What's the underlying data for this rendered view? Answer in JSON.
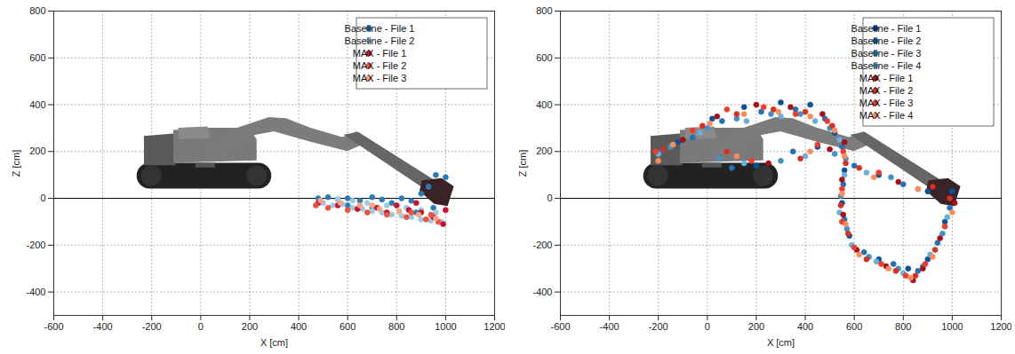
{
  "chart_data": [
    {
      "type": "scatter",
      "xlabel": "X [cm]",
      "ylabel": "Z [cm]",
      "xlim": [
        -600,
        1200
      ],
      "ylim": [
        -500,
        800
      ],
      "xticks": [
        -600,
        -400,
        -200,
        0,
        200,
        400,
        600,
        800,
        1000,
        1200
      ],
      "yticks": [
        -400,
        -200,
        0,
        200,
        400,
        600,
        800
      ],
      "grid": true,
      "legend": "top-right",
      "marker": "circle",
      "hlines": [
        0
      ],
      "series": [
        {
          "name": "Baseline - File 1",
          "color": "#2b7bba",
          "values": [
            [
              480,
              0
            ],
            [
              520,
              5
            ],
            [
              560,
              -5
            ],
            [
              600,
              0
            ],
            [
              650,
              -10
            ],
            [
              700,
              5
            ],
            [
              740,
              -5
            ],
            [
              780,
              -20
            ],
            [
              820,
              0
            ],
            [
              860,
              -10
            ],
            [
              900,
              20
            ],
            [
              930,
              50
            ],
            [
              960,
              100
            ],
            [
              1000,
              90
            ],
            [
              950,
              -40
            ],
            [
              880,
              -60
            ],
            [
              700,
              -40
            ],
            [
              600,
              -30
            ]
          ]
        },
        {
          "name": "Baseline - File 2",
          "color": "#9ecae1",
          "values": [
            [
              500,
              -20
            ],
            [
              540,
              -30
            ],
            [
              580,
              -25
            ],
            [
              620,
              -40
            ],
            [
              660,
              -45
            ],
            [
              700,
              -55
            ],
            [
              740,
              -60
            ],
            [
              780,
              -70
            ],
            [
              820,
              -75
            ],
            [
              860,
              -80
            ],
            [
              900,
              -90
            ],
            [
              940,
              -95
            ],
            [
              980,
              -100
            ],
            [
              960,
              -60
            ],
            [
              900,
              -50
            ],
            [
              840,
              -40
            ],
            [
              760,
              -30
            ],
            [
              680,
              -20
            ],
            [
              620,
              -10
            ],
            [
              560,
              -5
            ]
          ]
        },
        {
          "name": "MAX - File 1",
          "color": "#c8102e",
          "values": [
            [
              480,
              -20
            ],
            [
              560,
              -30
            ],
            [
              640,
              -45
            ],
            [
              720,
              -40
            ],
            [
              800,
              -30
            ],
            [
              850,
              -50
            ],
            [
              900,
              -60
            ],
            [
              950,
              -80
            ],
            [
              990,
              -110
            ],
            [
              1000,
              -50
            ],
            [
              880,
              -20
            ],
            [
              760,
              -60
            ]
          ]
        },
        {
          "name": "MAX - File 2",
          "color": "#e8543f",
          "values": [
            [
              470,
              -30
            ],
            [
              520,
              -40
            ],
            [
              600,
              -50
            ],
            [
              680,
              -60
            ],
            [
              760,
              -70
            ],
            [
              840,
              -80
            ],
            [
              920,
              -90
            ],
            [
              970,
              -100
            ],
            [
              940,
              -70
            ],
            [
              860,
              -60
            ]
          ]
        },
        {
          "name": "MAX - File 3",
          "color": "#f4a582",
          "values": [
            [
              490,
              -10
            ],
            [
              570,
              -20
            ],
            [
              650,
              -30
            ],
            [
              730,
              -45
            ],
            [
              810,
              -55
            ],
            [
              890,
              -70
            ],
            [
              960,
              -85
            ],
            [
              700,
              -30
            ]
          ]
        }
      ]
    },
    {
      "type": "scatter",
      "xlabel": "X [cm]",
      "ylabel": "Z [cm]",
      "xlim": [
        -600,
        1200
      ],
      "ylim": [
        -500,
        800
      ],
      "xticks": [
        -600,
        -400,
        -200,
        0,
        200,
        400,
        600,
        800,
        1000,
        1200
      ],
      "yticks": [
        -400,
        -200,
        0,
        200,
        400,
        600,
        800
      ],
      "grid": true,
      "legend": "top-right",
      "marker": "circle",
      "hlines": [
        0
      ],
      "series": [
        {
          "name": "Baseline - File 1",
          "color": "#08519c",
          "values": [
            [
              1000,
              30
            ],
            [
              970,
              -100
            ],
            [
              900,
              -260
            ],
            [
              820,
              -300
            ],
            [
              700,
              -260
            ],
            [
              580,
              -160
            ],
            [
              550,
              -20
            ],
            [
              560,
              120
            ],
            [
              520,
              280
            ],
            [
              420,
              400
            ],
            [
              300,
              410
            ],
            [
              150,
              390
            ],
            [
              20,
              340
            ],
            [
              -120,
              240
            ],
            [
              200,
              140
            ],
            [
              450,
              220
            ],
            [
              700,
              100
            ],
            [
              900,
              30
            ]
          ]
        },
        {
          "name": "Baseline - File 2",
          "color": "#2171b5",
          "values": [
            [
              990,
              -40
            ],
            [
              940,
              -190
            ],
            [
              860,
              -310
            ],
            [
              760,
              -280
            ],
            [
              640,
              -230
            ],
            [
              560,
              -90
            ],
            [
              555,
              60
            ],
            [
              550,
              220
            ],
            [
              480,
              340
            ],
            [
              360,
              380
            ],
            [
              220,
              370
            ],
            [
              60,
              330
            ],
            [
              -60,
              260
            ],
            [
              -190,
              200
            ],
            [
              100,
              130
            ],
            [
              350,
              200
            ],
            [
              600,
              140
            ],
            [
              800,
              60
            ]
          ]
        },
        {
          "name": "Baseline - File 3",
          "color": "#4292c6",
          "values": [
            [
              960,
              -150
            ],
            [
              880,
              -290
            ],
            [
              780,
              -300
            ],
            [
              660,
              -250
            ],
            [
              570,
              -130
            ],
            [
              545,
              10
            ],
            [
              565,
              170
            ],
            [
              500,
              300
            ],
            [
              380,
              360
            ],
            [
              260,
              360
            ],
            [
              120,
              340
            ],
            [
              0,
              300
            ],
            [
              -150,
              220
            ],
            [
              50,
              170
            ],
            [
              300,
              160
            ],
            [
              520,
              190
            ],
            [
              750,
              90
            ]
          ]
        },
        {
          "name": "Baseline - File 4",
          "color": "#6baed6",
          "values": [
            [
              980,
              -80
            ],
            [
              910,
              -240
            ],
            [
              800,
              -320
            ],
            [
              690,
              -270
            ],
            [
              590,
              -200
            ],
            [
              540,
              -60
            ],
            [
              560,
              100
            ],
            [
              540,
              250
            ],
            [
              440,
              330
            ],
            [
              300,
              350
            ],
            [
              160,
              330
            ],
            [
              -30,
              280
            ],
            [
              -200,
              190
            ],
            [
              150,
              150
            ],
            [
              400,
              180
            ],
            [
              650,
              110
            ],
            [
              860,
              40
            ]
          ]
        },
        {
          "name": "MAX - File 1",
          "color": "#a50f15",
          "values": [
            [
              1010,
              -20
            ],
            [
              950,
              -170
            ],
            [
              880,
              -300
            ],
            [
              840,
              -350
            ],
            [
              730,
              -290
            ],
            [
              610,
              -220
            ],
            [
              555,
              -70
            ],
            [
              550,
              80
            ],
            [
              560,
              240
            ],
            [
              470,
              360
            ],
            [
              340,
              390
            ],
            [
              200,
              400
            ],
            [
              40,
              350
            ],
            [
              -100,
              250
            ],
            [
              250,
              150
            ],
            [
              500,
              210
            ],
            [
              780,
              70
            ]
          ]
        },
        {
          "name": "MAX - File 2",
          "color": "#d7301f",
          "values": [
            [
              990,
              0
            ],
            [
              930,
              -220
            ],
            [
              850,
              -330
            ],
            [
              770,
              -310
            ],
            [
              650,
              -260
            ],
            [
              575,
              -150
            ],
            [
              545,
              -30
            ],
            [
              565,
              150
            ],
            [
              510,
              310
            ],
            [
              400,
              370
            ],
            [
              270,
              380
            ],
            [
              120,
              360
            ],
            [
              -20,
              310
            ],
            [
              -180,
              210
            ],
            [
              80,
              200
            ],
            [
              380,
              170
            ],
            [
              620,
              130
            ],
            [
              920,
              50
            ]
          ]
        },
        {
          "name": "MAX - File 3",
          "color": "#ef3b2c",
          "values": [
            [
              970,
              -120
            ],
            [
              890,
              -280
            ],
            [
              810,
              -330
            ],
            [
              710,
              -280
            ],
            [
              600,
              -210
            ],
            [
              550,
              -100
            ],
            [
              550,
              40
            ],
            [
              555,
              200
            ],
            [
              490,
              330
            ],
            [
              360,
              360
            ],
            [
              230,
              390
            ],
            [
              80,
              380
            ],
            [
              -60,
              290
            ],
            [
              -210,
              200
            ],
            [
              180,
              160
            ],
            [
              450,
              230
            ],
            [
              700,
              110
            ]
          ]
        },
        {
          "name": "MAX - File 4",
          "color": "#fc8d59",
          "values": [
            [
              1000,
              -60
            ],
            [
              920,
              -250
            ],
            [
              830,
              -340
            ],
            [
              740,
              -300
            ],
            [
              620,
              -240
            ],
            [
              565,
              -110
            ],
            [
              550,
              20
            ],
            [
              560,
              180
            ],
            [
              520,
              290
            ],
            [
              420,
              350
            ],
            [
              290,
              370
            ],
            [
              150,
              360
            ],
            [
              10,
              320
            ],
            [
              -140,
              230
            ],
            [
              -200,
              160
            ],
            [
              120,
              180
            ],
            [
              420,
              200
            ],
            [
              680,
              90
            ],
            [
              860,
              40
            ]
          ]
        }
      ]
    }
  ]
}
